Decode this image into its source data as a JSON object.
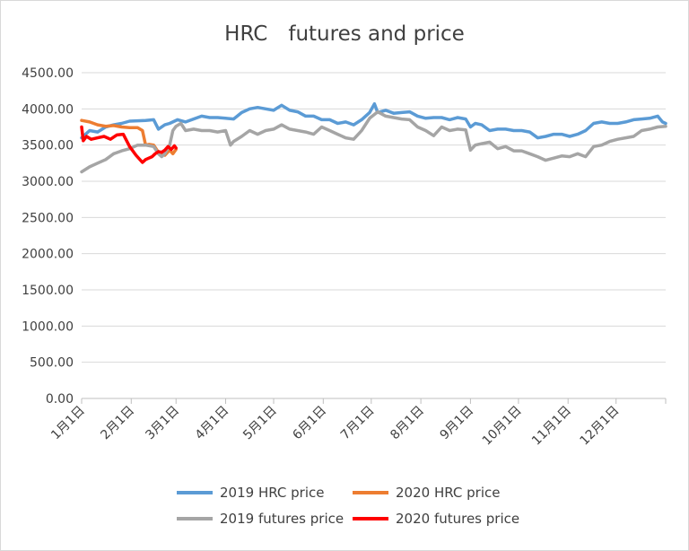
{
  "chart_data": {
    "type": "line",
    "title": "HRC　futures and price",
    "xlabel": "",
    "ylabel": "",
    "ylim": [
      0,
      4500
    ],
    "ytick_values": [
      0,
      500,
      1000,
      1500,
      2000,
      2500,
      3000,
      3500,
      4000,
      4500
    ],
    "ytick_labels": [
      "0.00",
      "500.00",
      "1000.00",
      "1500.00",
      "2000.00",
      "2500.00",
      "3000.00",
      "3500.00",
      "4000.00",
      "4500.00"
    ],
    "xlim": [
      0,
      365
    ],
    "xtick_values": [
      0,
      31,
      59,
      90,
      120,
      151,
      181,
      212,
      243,
      273,
      304,
      334
    ],
    "xtick_labels": [
      "1月1日",
      "2月1日",
      "3月1日",
      "4月1日",
      "5月1日",
      "6月1日",
      "7月1日",
      "8月1日",
      "9月1日",
      "10月1日",
      "11月1日",
      "12月1日"
    ],
    "grid": true,
    "legend_position": "bottom",
    "series": [
      {
        "name": "2019 HRC price",
        "color": "#5b9bd5",
        "x": [
          0,
          5,
          10,
          15,
          20,
          25,
          30,
          40,
          45,
          48,
          52,
          55,
          60,
          65,
          70,
          75,
          80,
          85,
          90,
          95,
          100,
          105,
          110,
          115,
          120,
          125,
          130,
          135,
          140,
          145,
          150,
          155,
          160,
          165,
          170,
          175,
          180,
          183,
          185,
          190,
          195,
          200,
          205,
          210,
          215,
          220,
          225,
          230,
          235,
          240,
          243,
          246,
          250,
          255,
          260,
          265,
          270,
          275,
          280,
          285,
          290,
          295,
          300,
          305,
          310,
          315,
          320,
          325,
          330,
          335,
          340,
          345,
          350,
          355,
          360,
          363,
          365
        ],
        "y": [
          3600,
          3700,
          3680,
          3750,
          3780,
          3800,
          3830,
          3840,
          3850,
          3720,
          3780,
          3800,
          3850,
          3820,
          3860,
          3900,
          3880,
          3880,
          3870,
          3860,
          3950,
          4000,
          4020,
          4000,
          3980,
          4050,
          3980,
          3960,
          3900,
          3900,
          3850,
          3850,
          3800,
          3820,
          3780,
          3850,
          3950,
          4070,
          3950,
          3980,
          3940,
          3950,
          3960,
          3900,
          3870,
          3880,
          3880,
          3850,
          3880,
          3860,
          3750,
          3800,
          3780,
          3700,
          3720,
          3720,
          3700,
          3700,
          3680,
          3600,
          3620,
          3650,
          3650,
          3620,
          3650,
          3700,
          3800,
          3820,
          3800,
          3800,
          3820,
          3850,
          3860,
          3870,
          3900,
          3820,
          3800
        ]
      },
      {
        "name": "2020 HRC price",
        "color": "#ed7d31",
        "x": [
          0,
          5,
          10,
          15,
          20,
          25,
          30,
          35,
          38,
          40,
          42,
          45,
          48,
          50,
          52,
          55,
          57,
          59
        ],
        "y": [
          3840,
          3820,
          3780,
          3760,
          3770,
          3750,
          3740,
          3740,
          3700,
          3500,
          3510,
          3500,
          3400,
          3390,
          3360,
          3430,
          3380,
          3440
        ]
      },
      {
        "name": "2019 futures price",
        "color": "#a5a5a5",
        "x": [
          0,
          5,
          10,
          15,
          20,
          25,
          30,
          35,
          40,
          45,
          48,
          50,
          52,
          55,
          57,
          59,
          62,
          65,
          70,
          75,
          80,
          85,
          90,
          93,
          95,
          100,
          105,
          110,
          115,
          120,
          125,
          130,
          135,
          140,
          145,
          150,
          155,
          160,
          165,
          170,
          175,
          180,
          185,
          190,
          195,
          200,
          205,
          210,
          215,
          220,
          225,
          230,
          235,
          240,
          243,
          246,
          250,
          255,
          260,
          265,
          270,
          275,
          280,
          285,
          290,
          295,
          300,
          305,
          310,
          315,
          320,
          325,
          330,
          335,
          340,
          345,
          350,
          355,
          360,
          365
        ],
        "y": [
          3130,
          3200,
          3250,
          3300,
          3380,
          3420,
          3450,
          3500,
          3500,
          3480,
          3380,
          3340,
          3380,
          3500,
          3700,
          3760,
          3800,
          3700,
          3720,
          3700,
          3700,
          3680,
          3700,
          3500,
          3550,
          3620,
          3700,
          3650,
          3700,
          3720,
          3780,
          3720,
          3700,
          3680,
          3650,
          3750,
          3700,
          3650,
          3600,
          3580,
          3700,
          3870,
          3960,
          3900,
          3880,
          3860,
          3850,
          3750,
          3700,
          3630,
          3750,
          3700,
          3720,
          3710,
          3430,
          3500,
          3520,
          3540,
          3450,
          3480,
          3420,
          3420,
          3380,
          3340,
          3290,
          3320,
          3350,
          3340,
          3380,
          3340,
          3480,
          3500,
          3550,
          3580,
          3600,
          3620,
          3700,
          3720,
          3750,
          3760
        ]
      },
      {
        "name": "2020 futures price",
        "color": "#ff0000",
        "x": [
          0,
          1,
          3,
          6,
          10,
          14,
          18,
          22,
          26,
          30,
          34,
          38,
          40,
          42,
          44,
          46,
          48,
          50,
          52,
          54,
          56,
          58,
          59
        ],
        "y": [
          3750,
          3560,
          3620,
          3580,
          3600,
          3620,
          3580,
          3640,
          3650,
          3480,
          3360,
          3260,
          3300,
          3320,
          3340,
          3380,
          3410,
          3400,
          3430,
          3480,
          3440,
          3490,
          3460
        ]
      }
    ]
  }
}
